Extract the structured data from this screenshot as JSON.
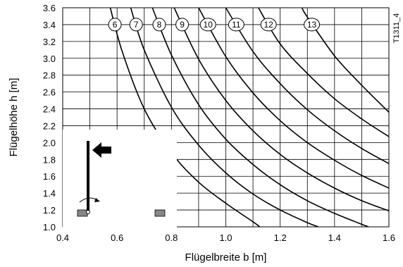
{
  "chart_data": {
    "type": "line",
    "xlabel": "Flügelbreite b [m]",
    "ylabel": "Flügelhöhe h [m]",
    "xlim": [
      0.4,
      1.6
    ],
    "ylim": [
      1.0,
      3.6
    ],
    "x_ticks": [
      "0.4",
      "0.6",
      "0.8",
      "1.0",
      "1.2",
      "1.4",
      "1.6"
    ],
    "y_ticks": [
      "1.0",
      "1.2",
      "1.4",
      "1.6",
      "1.8",
      "2.0",
      "2.2",
      "2.4",
      "2.6",
      "2.8",
      "3.0",
      "3.2",
      "3.4",
      "3.6"
    ],
    "grid": true,
    "code": "T1311_4",
    "series": [
      {
        "name": "6",
        "points": [
          [
            0.575,
            3.6
          ],
          [
            0.62,
            3.07
          ],
          [
            0.7,
            2.4
          ],
          [
            0.8,
            1.88
          ],
          [
            0.9,
            1.53
          ],
          [
            1.0,
            1.28
          ],
          [
            1.1,
            1.06
          ],
          [
            1.125,
            1.0
          ]
        ]
      },
      {
        "name": "7",
        "points": [
          [
            0.65,
            3.6
          ],
          [
            0.7,
            3.1
          ],
          [
            0.8,
            2.42
          ],
          [
            0.9,
            1.97
          ],
          [
            1.0,
            1.64
          ],
          [
            1.1,
            1.39
          ],
          [
            1.2,
            1.2
          ],
          [
            1.3,
            1.05
          ],
          [
            1.34,
            1.0
          ]
        ]
      },
      {
        "name": "8",
        "points": [
          [
            0.73,
            3.6
          ],
          [
            0.8,
            3.04
          ],
          [
            0.9,
            2.45
          ],
          [
            1.0,
            2.04
          ],
          [
            1.1,
            1.74
          ],
          [
            1.2,
            1.5
          ],
          [
            1.3,
            1.31
          ],
          [
            1.4,
            1.16
          ],
          [
            1.5,
            1.03
          ],
          [
            1.525,
            1.0
          ]
        ]
      },
      {
        "name": "9",
        "points": [
          [
            0.81,
            3.6
          ],
          [
            0.9,
            2.99
          ],
          [
            1.0,
            2.5
          ],
          [
            1.1,
            2.14
          ],
          [
            1.2,
            1.86
          ],
          [
            1.3,
            1.64
          ],
          [
            1.4,
            1.46
          ],
          [
            1.5,
            1.31
          ],
          [
            1.6,
            1.19
          ]
        ]
      },
      {
        "name": "10",
        "points": [
          [
            0.9,
            3.6
          ],
          [
            1.0,
            3.02
          ],
          [
            1.1,
            2.59
          ],
          [
            1.2,
            2.26
          ],
          [
            1.3,
            2.0
          ],
          [
            1.4,
            1.79
          ],
          [
            1.5,
            1.61
          ],
          [
            1.6,
            1.46
          ]
        ]
      },
      {
        "name": "11",
        "points": [
          [
            1.0,
            3.6
          ],
          [
            1.1,
            3.08
          ],
          [
            1.2,
            2.7
          ],
          [
            1.3,
            2.39
          ],
          [
            1.4,
            2.14
          ],
          [
            1.5,
            1.93
          ],
          [
            1.6,
            1.75
          ]
        ]
      },
      {
        "name": "12",
        "points": [
          [
            1.12,
            3.6
          ],
          [
            1.2,
            3.17
          ],
          [
            1.3,
            2.82
          ],
          [
            1.4,
            2.52
          ],
          [
            1.5,
            2.28
          ],
          [
            1.6,
            2.07
          ]
        ]
      },
      {
        "name": "13",
        "points": [
          [
            1.28,
            3.6
          ],
          [
            1.3,
            3.49
          ],
          [
            1.4,
            3.03
          ],
          [
            1.5,
            2.68
          ],
          [
            1.6,
            2.36
          ]
        ]
      }
    ]
  }
}
